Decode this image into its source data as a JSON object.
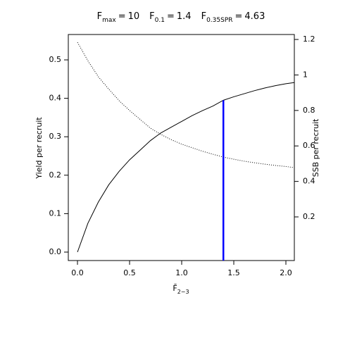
{
  "chart_data": {
    "type": "line",
    "title_items": [
      {
        "symbol": "F",
        "subscript": "max",
        "sign": "=",
        "value": 10
      },
      {
        "symbol": "F",
        "subscript": "0.1",
        "sign": "=",
        "value": 1.4
      },
      {
        "symbol": "F",
        "subscript": "0.35SPR",
        "sign": "=",
        "value": 4.63
      }
    ],
    "x_label": {
      "symbol": "F̄",
      "subscript": "2−3"
    },
    "y_label": "Yield per recruit",
    "y2_label": "SSB per recruit",
    "x": [
      0,
      0.1,
      0.2,
      0.3,
      0.4,
      0.5,
      0.6,
      0.7,
      0.8,
      0.9,
      1.0,
      1.1,
      1.2,
      1.3,
      1.4,
      1.5,
      1.6,
      1.7,
      1.8,
      1.9,
      2.0,
      2.08
    ],
    "series": [
      {
        "name": "Yield per recruit",
        "color": "#000000",
        "line_style": "solid",
        "axis": "y",
        "values": [
          0,
          0.075,
          0.13,
          0.175,
          0.21,
          0.24,
          0.265,
          0.29,
          0.31,
          0.325,
          0.34,
          0.355,
          0.368,
          0.38,
          0.395,
          0.404,
          0.412,
          0.42,
          0.427,
          0.433,
          0.438,
          0.441
        ]
      },
      {
        "name": "SSB per recruit",
        "color": "#000000",
        "line_style": "dotted",
        "axis": "y2",
        "values": [
          1.184,
          1.08,
          0.99,
          0.92,
          0.855,
          0.8,
          0.75,
          0.7,
          0.665,
          0.635,
          0.61,
          0.59,
          0.57,
          0.553,
          0.537,
          0.525,
          0.514,
          0.505,
          0.497,
          0.49,
          0.484,
          0.478
        ]
      }
    ],
    "reference_line": {
      "x": 1.4,
      "color": "#0000ff"
    },
    "xlim": [
      -0.088,
      2.081
    ],
    "xticks": [
      {
        "value": 0,
        "label": "0.0"
      },
      0.5,
      {
        "value": 1,
        "label": "1.0"
      },
      1.5,
      {
        "value": 2,
        "label": "2.0"
      }
    ],
    "ylim": [
      -0.022,
      0.566
    ],
    "yticks": [
      {
        "value": 0,
        "label": "0.0"
      },
      0.1,
      0.2,
      0.3,
      0.4,
      0.5
    ],
    "y2lim": [
      -0.046,
      1.228
    ],
    "y2ticks": [
      0.2,
      0.4,
      0.6,
      0.8,
      1,
      1.2
    ]
  }
}
